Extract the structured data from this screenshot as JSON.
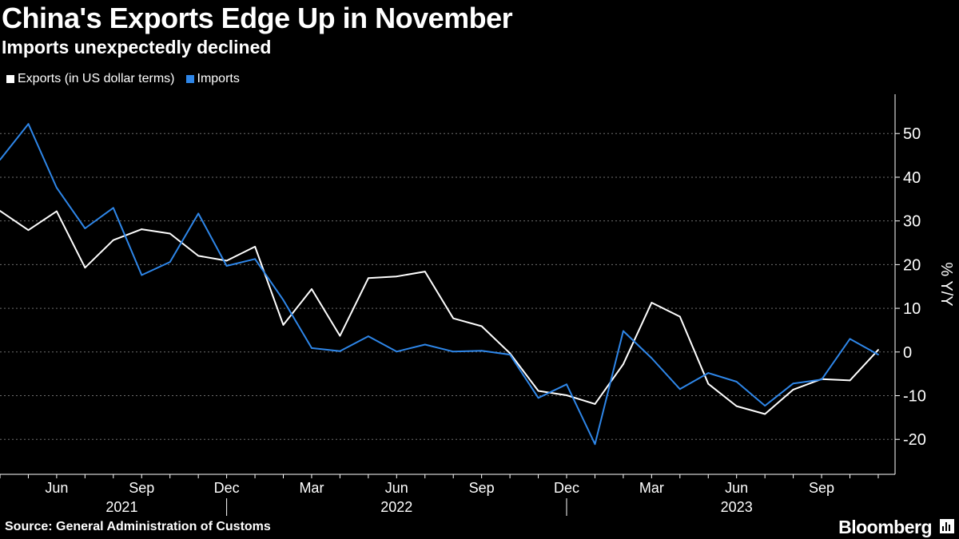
{
  "title": "China's Exports Edge Up in November",
  "subtitle": "Imports unexpectedly declined",
  "source": "Source: General Administration of Customs",
  "brand": "Bloomberg",
  "colors": {
    "background": "#000000",
    "exports": "#ffffff",
    "imports": "#2e86e8",
    "grid": "#6e6e6e"
  },
  "chart_data": {
    "type": "line",
    "x": [
      "2021-04",
      "2021-05",
      "2021-06",
      "2021-07",
      "2021-08",
      "2021-09",
      "2021-10",
      "2021-11",
      "2021-12",
      "2022-01",
      "2022-02",
      "2022-03",
      "2022-04",
      "2022-05",
      "2022-06",
      "2022-07",
      "2022-08",
      "2022-09",
      "2022-10",
      "2022-11",
      "2022-12",
      "2023-01",
      "2023-02",
      "2023-03",
      "2023-04",
      "2023-05",
      "2023-06",
      "2023-07",
      "2023-08",
      "2023-09",
      "2023-10",
      "2023-11"
    ],
    "series": [
      {
        "name": "Exports (in US dollar terms)",
        "color": "#ffffff",
        "values": [
          32.3,
          27.9,
          32.2,
          19.3,
          25.6,
          28.1,
          27.1,
          22.0,
          20.9,
          24.1,
          6.2,
          14.4,
          3.7,
          16.9,
          17.3,
          18.4,
          7.7,
          5.9,
          -0.3,
          -8.9,
          -9.9,
          -11.9,
          -2.8,
          11.3,
          8.1,
          -7.3,
          -12.4,
          -14.2,
          -8.6,
          -6.2,
          -6.5,
          0.5
        ]
      },
      {
        "name": "Imports",
        "color": "#2e86e8",
        "values": [
          44.0,
          52.2,
          37.6,
          28.3,
          33.0,
          17.6,
          20.6,
          31.7,
          19.7,
          21.3,
          11.9,
          0.9,
          0.2,
          3.6,
          0.1,
          1.7,
          0.1,
          0.3,
          -0.6,
          -10.5,
          -7.4,
          -21.1,
          4.8,
          -1.4,
          -8.5,
          -4.8,
          -6.8,
          -12.3,
          -7.2,
          -6.3,
          3.0,
          -0.6
        ]
      }
    ],
    "ylabel": "% Y/Y",
    "ylim": [
      -28,
      59
    ],
    "yticks": [
      50,
      40,
      30,
      20,
      10,
      0,
      -10,
      -20
    ],
    "xticks": [
      "Jun",
      "Sep",
      "Dec",
      "Mar",
      "Jun",
      "Sep",
      "Dec",
      "Mar",
      "Jun",
      "Sep"
    ],
    "year_labels": [
      "2021",
      "2022",
      "2023"
    ],
    "grid": "horizontal dotted",
    "legend": "top-left"
  }
}
